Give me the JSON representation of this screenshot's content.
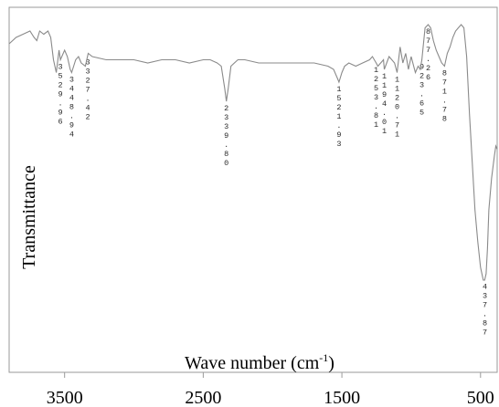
{
  "chart_data": {
    "type": "line",
    "title": "",
    "xlabel": "Wave number (cm",
    "xlabel_sup": "-1",
    "xlabel_close": ")",
    "ylabel": "Transmittance",
    "xlim": [
      3900,
      380
    ],
    "x_reversed": true,
    "xticks": [
      3500,
      2500,
      1500,
      500
    ],
    "ylim": [
      0,
      100
    ],
    "grid": false,
    "series": [
      {
        "x": [
          3900,
          3850,
          3800,
          3750,
          3720,
          3700,
          3680,
          3650,
          3620,
          3600,
          3580,
          3560,
          3540,
          3530,
          3500,
          3480,
          3460,
          3449,
          3420,
          3400,
          3380,
          3350,
          3330,
          3300,
          3200,
          3100,
          3000,
          2900,
          2800,
          2700,
          2600,
          2500,
          2450,
          2400,
          2370,
          2345,
          2333,
          2320,
          2300,
          2250,
          2200,
          2100,
          2000,
          1900,
          1800,
          1700,
          1600,
          1560,
          1530,
          1521,
          1500,
          1480,
          1450,
          1400,
          1350,
          1300,
          1280,
          1253,
          1240,
          1200,
          1194,
          1160,
          1120,
          1102,
          1080,
          1060,
          1040,
          1020,
          1000,
          970,
          950,
          935,
          923,
          900,
          878,
          860,
          840,
          820,
          800,
          780,
          760,
          740,
          720,
          700,
          680,
          660,
          640,
          620,
          600,
          580,
          560,
          540,
          520,
          500,
          480,
          470,
          460,
          450,
          440,
          420,
          400,
          390,
          380
        ],
        "y": [
          92,
          94,
          95,
          96,
          94,
          93,
          96,
          95,
          96,
          94,
          87,
          83,
          90,
          87,
          90,
          88,
          84,
          83,
          87,
          88,
          86,
          85,
          89,
          88,
          87,
          87,
          87,
          86,
          87,
          87,
          86,
          87,
          87,
          86,
          85,
          78,
          74,
          78,
          85,
          87,
          87,
          86,
          86,
          86,
          86,
          86,
          85,
          84,
          81,
          80,
          83,
          85,
          86,
          85,
          86,
          87,
          88,
          86,
          85,
          87,
          84,
          88,
          86,
          83,
          91,
          86,
          89,
          84,
          88,
          83,
          85,
          84,
          87,
          97,
          98,
          97,
          93,
          90,
          88,
          86,
          85,
          89,
          91,
          94,
          96,
          97,
          98,
          97,
          88,
          70,
          55,
          40,
          30,
          22,
          18,
          18,
          20,
          28,
          40,
          50,
          57,
          60,
          59
        ]
      }
    ],
    "peak_labels": [
      {
        "x": 3530,
        "text": "3529.96"
      },
      {
        "x": 3449,
        "text": "3448.94"
      },
      {
        "x": 3333,
        "text": "3327.42"
      },
      {
        "x": 2333,
        "text": "2339.80"
      },
      {
        "x": 1521,
        "text": "1521.93"
      },
      {
        "x": 1253,
        "text": "1253.81"
      },
      {
        "x": 1194,
        "text": "1194.01"
      },
      {
        "x": 1102,
        "text": "1120.71"
      },
      {
        "x": 923,
        "text": "923.65"
      },
      {
        "x": 878,
        "text": "877.26"
      },
      {
        "x": 760,
        "text": "871.78"
      },
      {
        "x": 469,
        "text": "437.87"
      }
    ]
  }
}
